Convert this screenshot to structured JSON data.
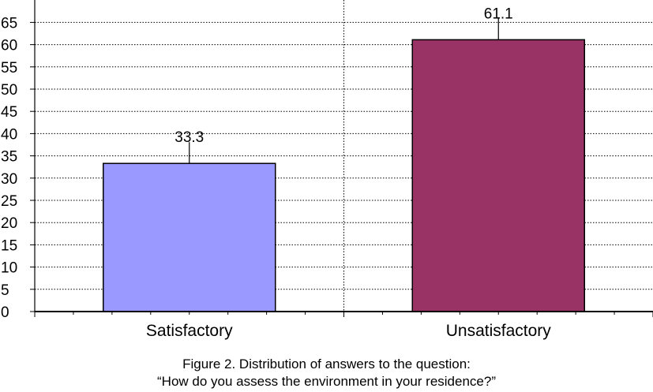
{
  "chart_data": {
    "type": "bar",
    "categories": [
      "Satisfactory",
      "Unsatisfactory"
    ],
    "values": [
      33.3,
      61.1
    ],
    "data_labels": [
      "33.3",
      "61.1"
    ],
    "colors": [
      "#9999ff",
      "#993366"
    ],
    "ylim": [
      0,
      70
    ],
    "yticks": [
      0,
      5,
      10,
      15,
      20,
      25,
      30,
      35,
      40,
      45,
      50,
      55,
      60,
      65
    ],
    "grid": true,
    "error_bars": true
  },
  "caption": {
    "line1": "Figure 2. Distribution of answers to the question:",
    "line2": "“How do you assess the environment in your residence?”"
  }
}
